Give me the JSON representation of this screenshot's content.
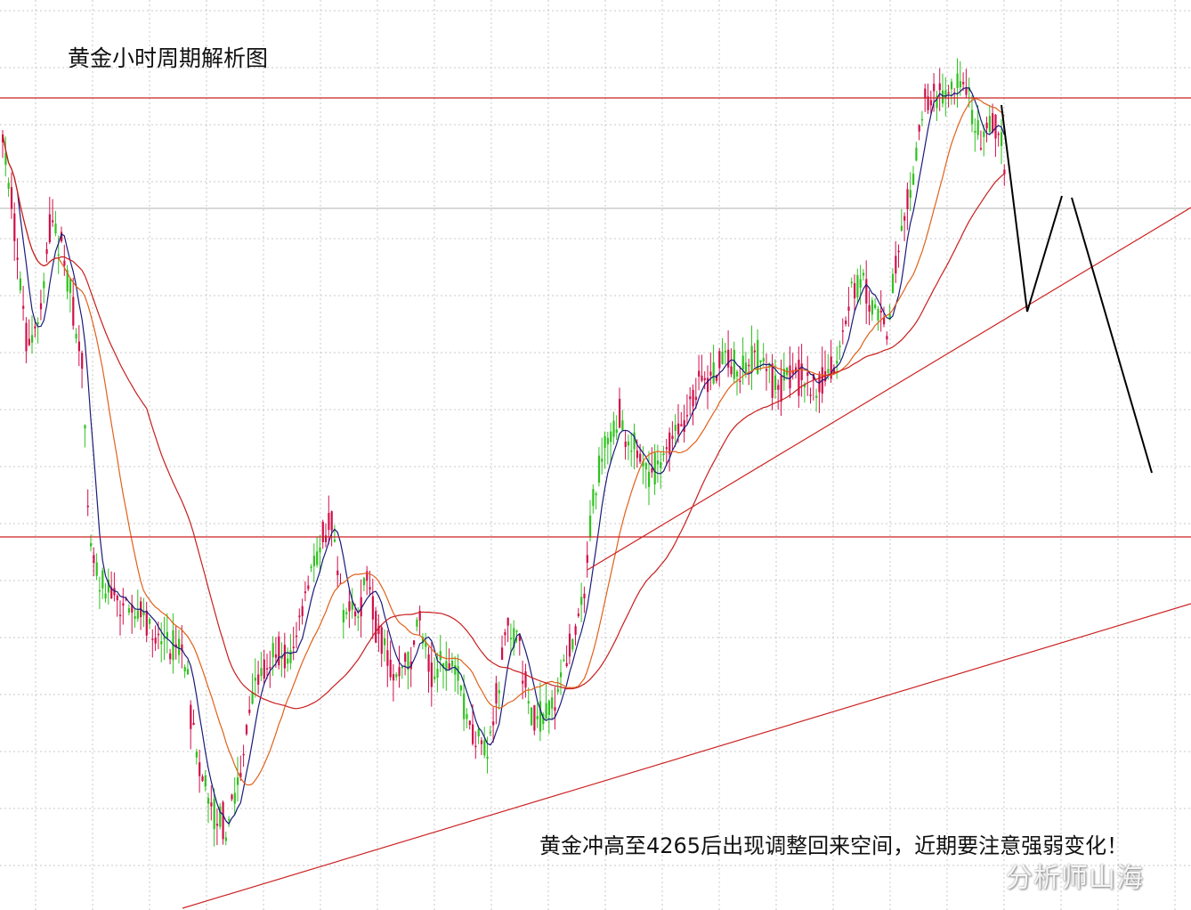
{
  "chart_title": "黄金小时周期解析图",
  "annotation": "黄金冲高至4265后出现调整回来空间，近期要注意强弱变化！",
  "watermark": "分析师山海",
  "colors": {
    "bull": "#d10f4a",
    "bear": "#2fc21f",
    "ma_fast": "#1a1a7a",
    "ma_mid": "#e0611a",
    "ma_slow": "#c81e1e",
    "level_line": "#cc2222",
    "trend_line": "#cc2222",
    "projection": "#000000",
    "grid": "#c8c8c8"
  },
  "chart_data": {
    "type": "candlestick",
    "instrument": "XAUUSD",
    "timeframe": "H1",
    "grid": true,
    "price_labels": [
      4265
    ],
    "moving_averages": [
      "fast",
      "mid",
      "slow"
    ],
    "support_resistance": [
      "resistance-upper",
      "support-lower",
      "rising-trendline-upper",
      "rising-trendline-lower"
    ],
    "projection": "drop-to-trendline, rebound, then fall"
  }
}
